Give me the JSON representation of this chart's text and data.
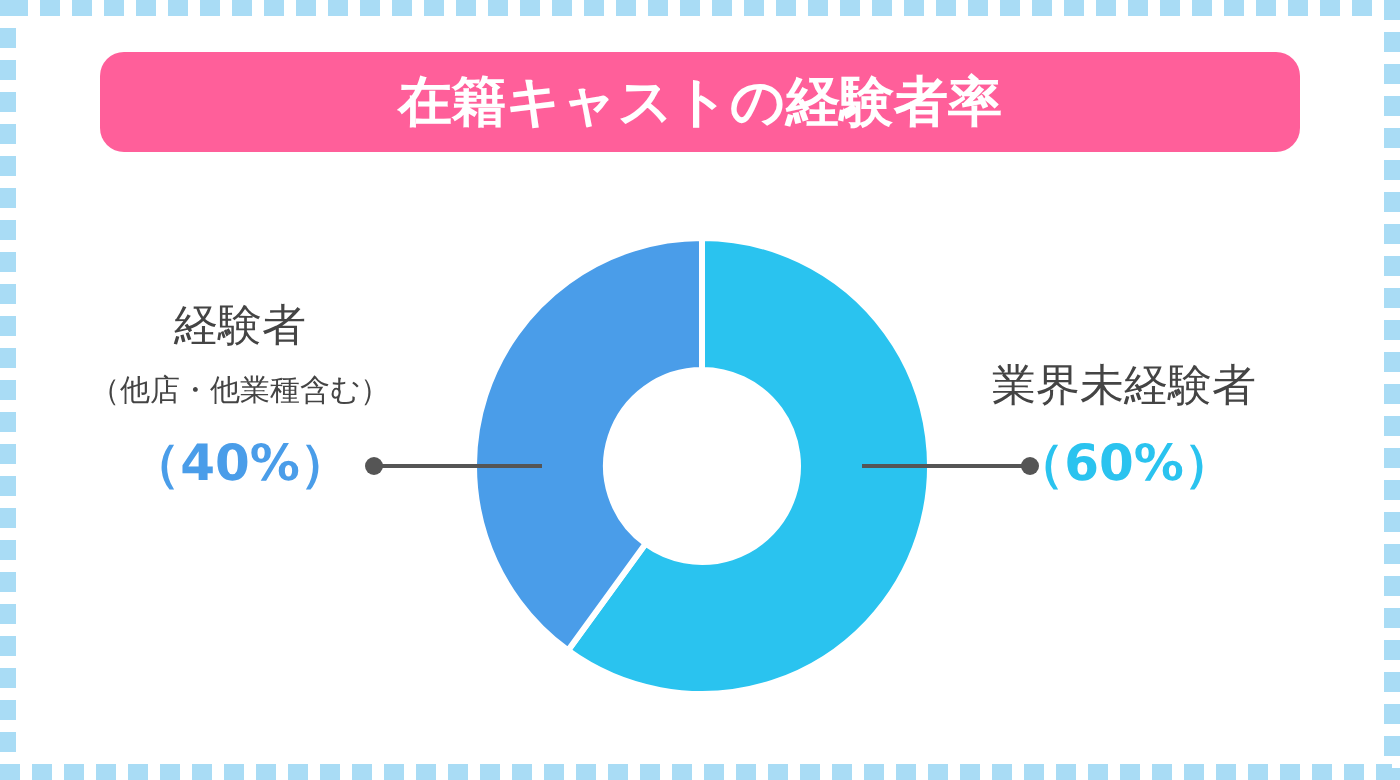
{
  "chart_data": {
    "type": "donut",
    "title": "在籍キャストの経験者率",
    "categories": [
      "業界未経験者",
      "経験者"
    ],
    "values": [
      60,
      40
    ],
    "colors": [
      "#2ac3ef",
      "#4a9de9"
    ],
    "value_labels": [
      "（60%）",
      "（40%）"
    ],
    "annotations": [
      "（他店・他業種含む）"
    ]
  }
}
